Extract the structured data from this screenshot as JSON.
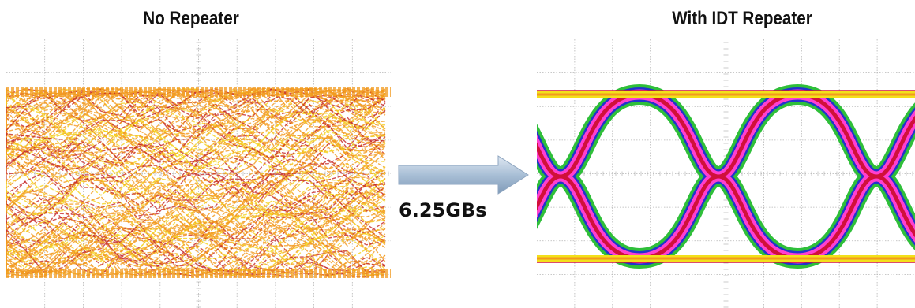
{
  "left_panel": {
    "title": "No Repeater"
  },
  "right_panel": {
    "title": "With IDT Repeater"
  },
  "transition": {
    "label": "6.25GBs"
  },
  "colors": {
    "grid": "#b5b5b5",
    "noise_orange": "#f29a1e",
    "noise_yellow": "#f4d21a",
    "noise_red": "#c62828",
    "eye_green": "#2fbf3a",
    "eye_blue": "#2233cc",
    "eye_magenta": "#ff3fd0",
    "eye_red": "#d0103a",
    "eye_yellow": "#f3e01a",
    "arrow_fill": "#a9bfd6"
  }
}
